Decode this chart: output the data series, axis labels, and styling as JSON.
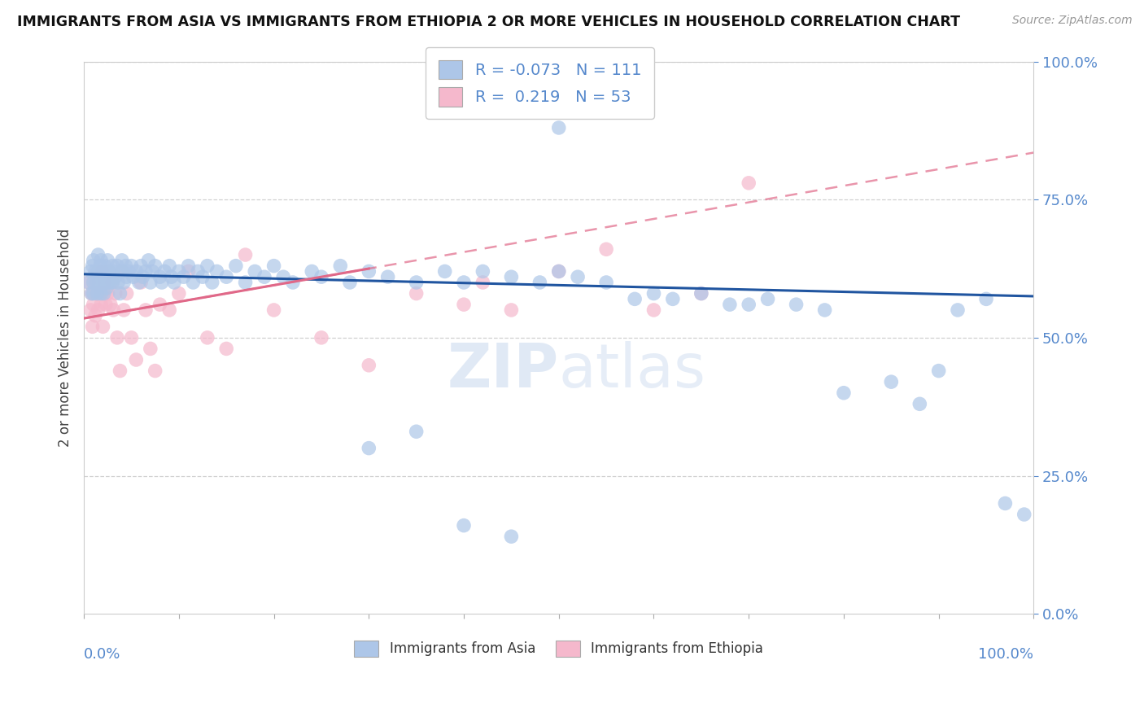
{
  "title": "IMMIGRANTS FROM ASIA VS IMMIGRANTS FROM ETHIOPIA 2 OR MORE VEHICLES IN HOUSEHOLD CORRELATION CHART",
  "source": "Source: ZipAtlas.com",
  "ylabel": "2 or more Vehicles in Household",
  "legend_asia_R": "-0.073",
  "legend_asia_N": "111",
  "legend_eth_R": "0.219",
  "legend_eth_N": "53",
  "asia_color": "#adc6e8",
  "ethiopia_color": "#f5b8cc",
  "asia_line_color": "#2055a0",
  "ethiopia_line_color": "#e06888",
  "background_color": "#ffffff",
  "grid_color": "#d0d0d0",
  "title_color": "#111111",
  "tick_label_color": "#5588cc",
  "watermark": "ZIPatlas",
  "watermark_color": "#c8d8ee",
  "xlim": [
    0.0,
    1.0
  ],
  "ylim": [
    0.0,
    1.0
  ],
  "asia_x": [
    0.005,
    0.007,
    0.008,
    0.009,
    0.01,
    0.01,
    0.01,
    0.012,
    0.013,
    0.014,
    0.015,
    0.015,
    0.016,
    0.017,
    0.018,
    0.018,
    0.019,
    0.02,
    0.02,
    0.021,
    0.022,
    0.023,
    0.024,
    0.025,
    0.025,
    0.026,
    0.028,
    0.03,
    0.03,
    0.031,
    0.033,
    0.035,
    0.036,
    0.038,
    0.04,
    0.04,
    0.042,
    0.044,
    0.045,
    0.047,
    0.05,
    0.052,
    0.055,
    0.058,
    0.06,
    0.062,
    0.065,
    0.068,
    0.07,
    0.072,
    0.075,
    0.08,
    0.082,
    0.085,
    0.09,
    0.092,
    0.095,
    0.1,
    0.105,
    0.11,
    0.115,
    0.12,
    0.125,
    0.13,
    0.135,
    0.14,
    0.15,
    0.16,
    0.17,
    0.18,
    0.19,
    0.2,
    0.21,
    0.22,
    0.24,
    0.25,
    0.27,
    0.28,
    0.3,
    0.32,
    0.35,
    0.38,
    0.4,
    0.42,
    0.45,
    0.48,
    0.5,
    0.52,
    0.55,
    0.58,
    0.6,
    0.62,
    0.65,
    0.68,
    0.7,
    0.72,
    0.75,
    0.78,
    0.8,
    0.85,
    0.88,
    0.9,
    0.92,
    0.95,
    0.97,
    0.99,
    0.3,
    0.35,
    0.4,
    0.45,
    0.5
  ],
  "asia_y": [
    0.6,
    0.62,
    0.58,
    0.63,
    0.6,
    0.58,
    0.64,
    0.62,
    0.6,
    0.58,
    0.65,
    0.62,
    0.6,
    0.63,
    0.58,
    0.64,
    0.61,
    0.6,
    0.62,
    0.58,
    0.63,
    0.61,
    0.59,
    0.64,
    0.6,
    0.62,
    0.6,
    0.63,
    0.6,
    0.62,
    0.61,
    0.63,
    0.6,
    0.58,
    0.64,
    0.62,
    0.6,
    0.63,
    0.61,
    0.62,
    0.63,
    0.61,
    0.62,
    0.6,
    0.63,
    0.61,
    0.62,
    0.64,
    0.6,
    0.62,
    0.63,
    0.61,
    0.6,
    0.62,
    0.63,
    0.61,
    0.6,
    0.62,
    0.61,
    0.63,
    0.6,
    0.62,
    0.61,
    0.63,
    0.6,
    0.62,
    0.61,
    0.63,
    0.6,
    0.62,
    0.61,
    0.63,
    0.61,
    0.6,
    0.62,
    0.61,
    0.63,
    0.6,
    0.62,
    0.61,
    0.6,
    0.62,
    0.6,
    0.62,
    0.61,
    0.6,
    0.62,
    0.61,
    0.6,
    0.57,
    0.58,
    0.57,
    0.58,
    0.56,
    0.56,
    0.57,
    0.56,
    0.55,
    0.4,
    0.42,
    0.38,
    0.44,
    0.55,
    0.57,
    0.2,
    0.18,
    0.3,
    0.33,
    0.16,
    0.14,
    0.88
  ],
  "eth_x": [
    0.005,
    0.007,
    0.008,
    0.009,
    0.01,
    0.01,
    0.012,
    0.013,
    0.015,
    0.015,
    0.016,
    0.018,
    0.019,
    0.02,
    0.02,
    0.022,
    0.023,
    0.025,
    0.026,
    0.028,
    0.03,
    0.031,
    0.033,
    0.035,
    0.038,
    0.04,
    0.042,
    0.045,
    0.05,
    0.055,
    0.06,
    0.065,
    0.07,
    0.075,
    0.08,
    0.09,
    0.1,
    0.11,
    0.13,
    0.15,
    0.17,
    0.2,
    0.25,
    0.3,
    0.35,
    0.4,
    0.42,
    0.45,
    0.5,
    0.55,
    0.6,
    0.65,
    0.7
  ],
  "eth_y": [
    0.6,
    0.55,
    0.58,
    0.52,
    0.6,
    0.56,
    0.54,
    0.58,
    0.62,
    0.55,
    0.58,
    0.56,
    0.62,
    0.58,
    0.52,
    0.6,
    0.56,
    0.58,
    0.62,
    0.56,
    0.6,
    0.55,
    0.58,
    0.5,
    0.44,
    0.62,
    0.55,
    0.58,
    0.5,
    0.46,
    0.6,
    0.55,
    0.48,
    0.44,
    0.56,
    0.55,
    0.58,
    0.62,
    0.5,
    0.48,
    0.65,
    0.55,
    0.5,
    0.45,
    0.58,
    0.56,
    0.6,
    0.55,
    0.62,
    0.66,
    0.55,
    0.58,
    0.78
  ]
}
